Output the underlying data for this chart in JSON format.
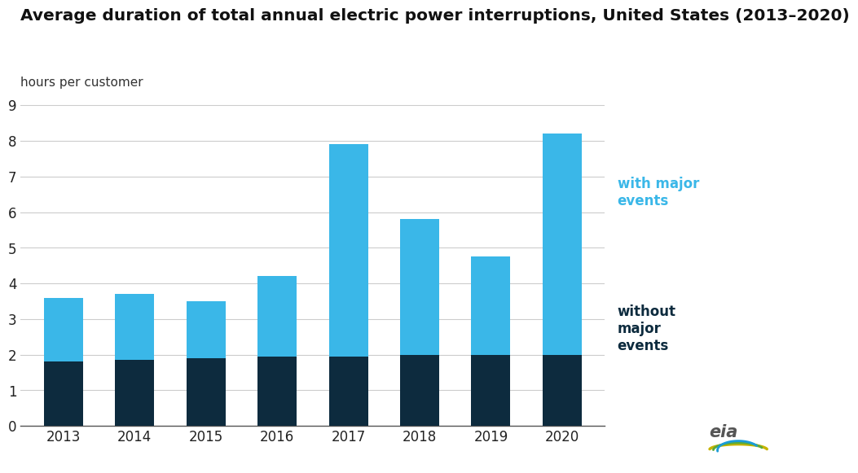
{
  "title": "Average duration of total annual electric power interruptions, United States (2013–2020)",
  "subtitle": "hours per customer",
  "years": [
    "2013",
    "2014",
    "2015",
    "2016",
    "2017",
    "2018",
    "2019",
    "2020"
  ],
  "without_major": [
    1.8,
    1.85,
    1.9,
    1.95,
    1.95,
    2.0,
    2.0,
    2.0
  ],
  "with_major_total": [
    3.6,
    3.7,
    3.5,
    4.2,
    7.9,
    5.8,
    4.75,
    8.2
  ],
  "color_without": "#0d2b3e",
  "color_with": "#3ab7e8",
  "ylim": [
    0,
    9
  ],
  "yticks": [
    0,
    1,
    2,
    3,
    4,
    5,
    6,
    7,
    8,
    9
  ],
  "background_color": "#ffffff",
  "label_with": "with major\nevents",
  "label_without": "without\nmajor\nevents",
  "title_fontsize": 14.5,
  "subtitle_fontsize": 11,
  "legend_fontsize": 12,
  "tick_fontsize": 12,
  "bar_width": 0.55
}
